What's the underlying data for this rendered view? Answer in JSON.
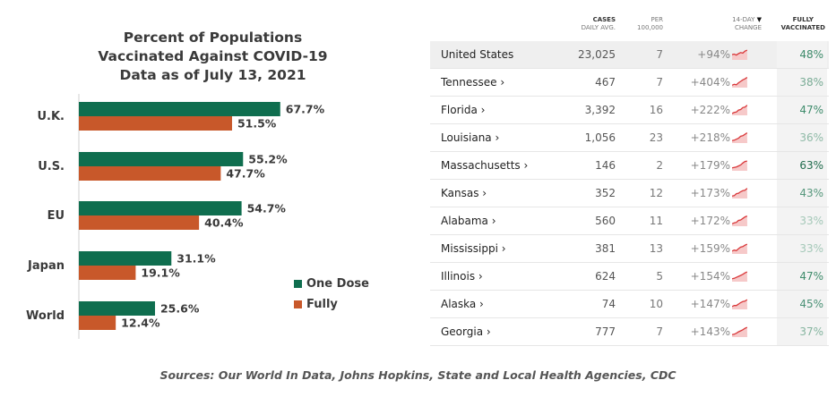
{
  "chart_data": {
    "type": "bar",
    "orientation": "horizontal",
    "title_lines": [
      "Percent of Populations",
      "Vaccinated Against COVID-19",
      "Data as of July 13, 2021"
    ],
    "categories": [
      "U.K.",
      "U.S.",
      "EU",
      "Japan",
      "World"
    ],
    "series": [
      {
        "name": "One Dose",
        "color": "#0f6e4f",
        "values": [
          67.7,
          55.2,
          54.7,
          31.1,
          25.6
        ],
        "labels": [
          "67.7%",
          "55.2%",
          "54.7%",
          "31.1%",
          "25.6%"
        ]
      },
      {
        "name": "Fully",
        "color": "#c8582a",
        "values": [
          51.5,
          47.7,
          40.4,
          19.1,
          12.4
        ],
        "labels": [
          "51.5%",
          "47.7%",
          "40.4%",
          "19.1%",
          "12.4%"
        ]
      }
    ],
    "xlim": [
      0,
      100
    ],
    "grid": false,
    "legend_position": "bottom-right"
  },
  "table": {
    "headers": {
      "cases": [
        "Cases",
        "Daily avg."
      ],
      "per": [
        "Per",
        "100,000"
      ],
      "change": [
        "14-Day",
        "Change"
      ],
      "vaccinated": [
        "Fully",
        "Vaccinated"
      ]
    },
    "rows": [
      {
        "state": "United States",
        "cases": "23,025",
        "per": "7",
        "change": "+94%",
        "vaccinated": "48%",
        "vacc_color": "#3d8a6a"
      },
      {
        "state": "Tennessee ›",
        "cases": "467",
        "per": "7",
        "change": "+404%",
        "vaccinated": "38%",
        "vacc_color": "#79ab95"
      },
      {
        "state": "Florida ›",
        "cases": "3,392",
        "per": "16",
        "change": "+222%",
        "vaccinated": "47%",
        "vacc_color": "#3f8c6c"
      },
      {
        "state": "Louisiana ›",
        "cases": "1,056",
        "per": "23",
        "change": "+218%",
        "vaccinated": "36%",
        "vacc_color": "#8fbaa7"
      },
      {
        "state": "Massachusetts ›",
        "cases": "146",
        "per": "2",
        "change": "+179%",
        "vaccinated": "63%",
        "vacc_color": "#1f6b4c"
      },
      {
        "state": "Kansas ›",
        "cases": "352",
        "per": "12",
        "change": "+173%",
        "vaccinated": "43%",
        "vacc_color": "#56977c"
      },
      {
        "state": "Alabama ›",
        "cases": "560",
        "per": "11",
        "change": "+172%",
        "vaccinated": "33%",
        "vacc_color": "#a4c8b8"
      },
      {
        "state": "Mississippi ›",
        "cases": "381",
        "per": "13",
        "change": "+159%",
        "vaccinated": "33%",
        "vacc_color": "#a4c8b8"
      },
      {
        "state": "Illinois ›",
        "cases": "624",
        "per": "5",
        "change": "+154%",
        "vaccinated": "47%",
        "vacc_color": "#3f8c6c"
      },
      {
        "state": "Alaska ›",
        "cases": "74",
        "per": "10",
        "change": "+147%",
        "vaccinated": "45%",
        "vacc_color": "#4b9176"
      },
      {
        "state": "Georgia ›",
        "cases": "777",
        "per": "7",
        "change": "+143%",
        "vaccinated": "37%",
        "vacc_color": "#86b5a0"
      }
    ]
  },
  "sources": "Sources: Our World In Data, Johns Hopkins, State and Local Health Agencies, CDC",
  "colors": {
    "spark_line": "#d9383a",
    "spark_fill": "#f6c9c9"
  }
}
